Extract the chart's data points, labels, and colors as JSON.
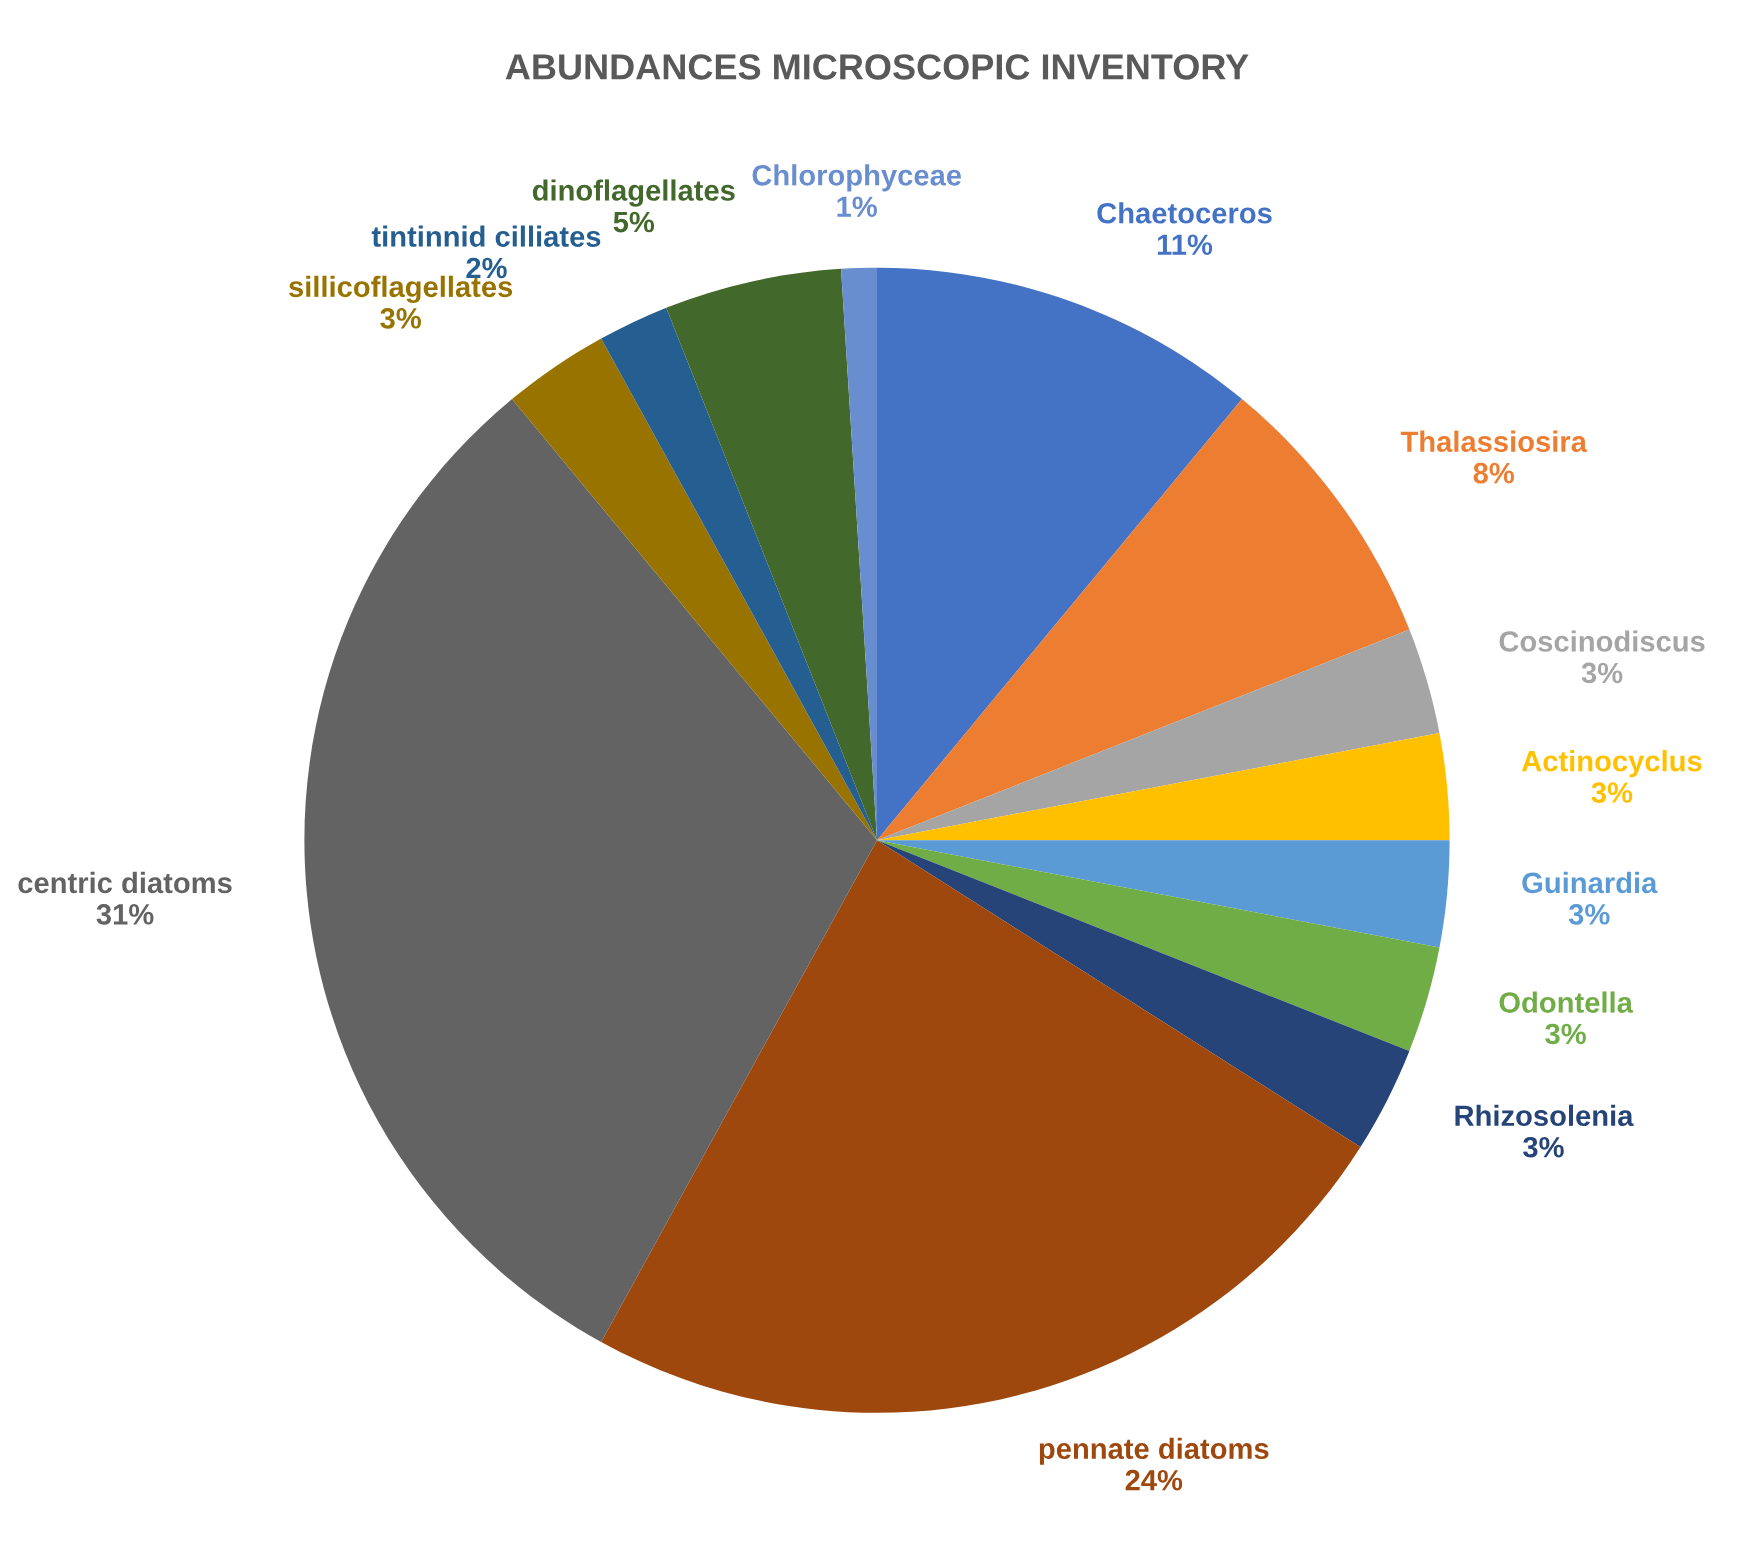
{
  "chart_data": {
    "type": "pie",
    "title": "ABUNDANCES MICROSCOPIC INVENTORY",
    "categories": [
      "Chaetoceros",
      "Thalassiosira",
      "Coscinodiscus",
      "Actinocyclus",
      "Guinardia",
      "Odontella",
      "Rhizosolenia",
      "pennate diatoms",
      "centric diatoms",
      "sillicoflagellates",
      "tintinnid cilliates",
      "dinoflagellates",
      "Chlorophyceae"
    ],
    "values": [
      11,
      8,
      3,
      3,
      3,
      3,
      3,
      24,
      31,
      3,
      2,
      5,
      1
    ],
    "value_labels": [
      "11%",
      "8%",
      "3%",
      "3%",
      "3%",
      "3%",
      "3%",
      "24%",
      "31%",
      "3%",
      "2%",
      "5%",
      "1%"
    ],
    "colors": [
      "#4472c4",
      "#ed7d31",
      "#a5a5a5",
      "#ffc000",
      "#5b9bd5",
      "#70ad47",
      "#264478",
      "#9e480e",
      "#636363",
      "#997300",
      "#255e91",
      "#43682b",
      "#698ed0"
    ]
  }
}
